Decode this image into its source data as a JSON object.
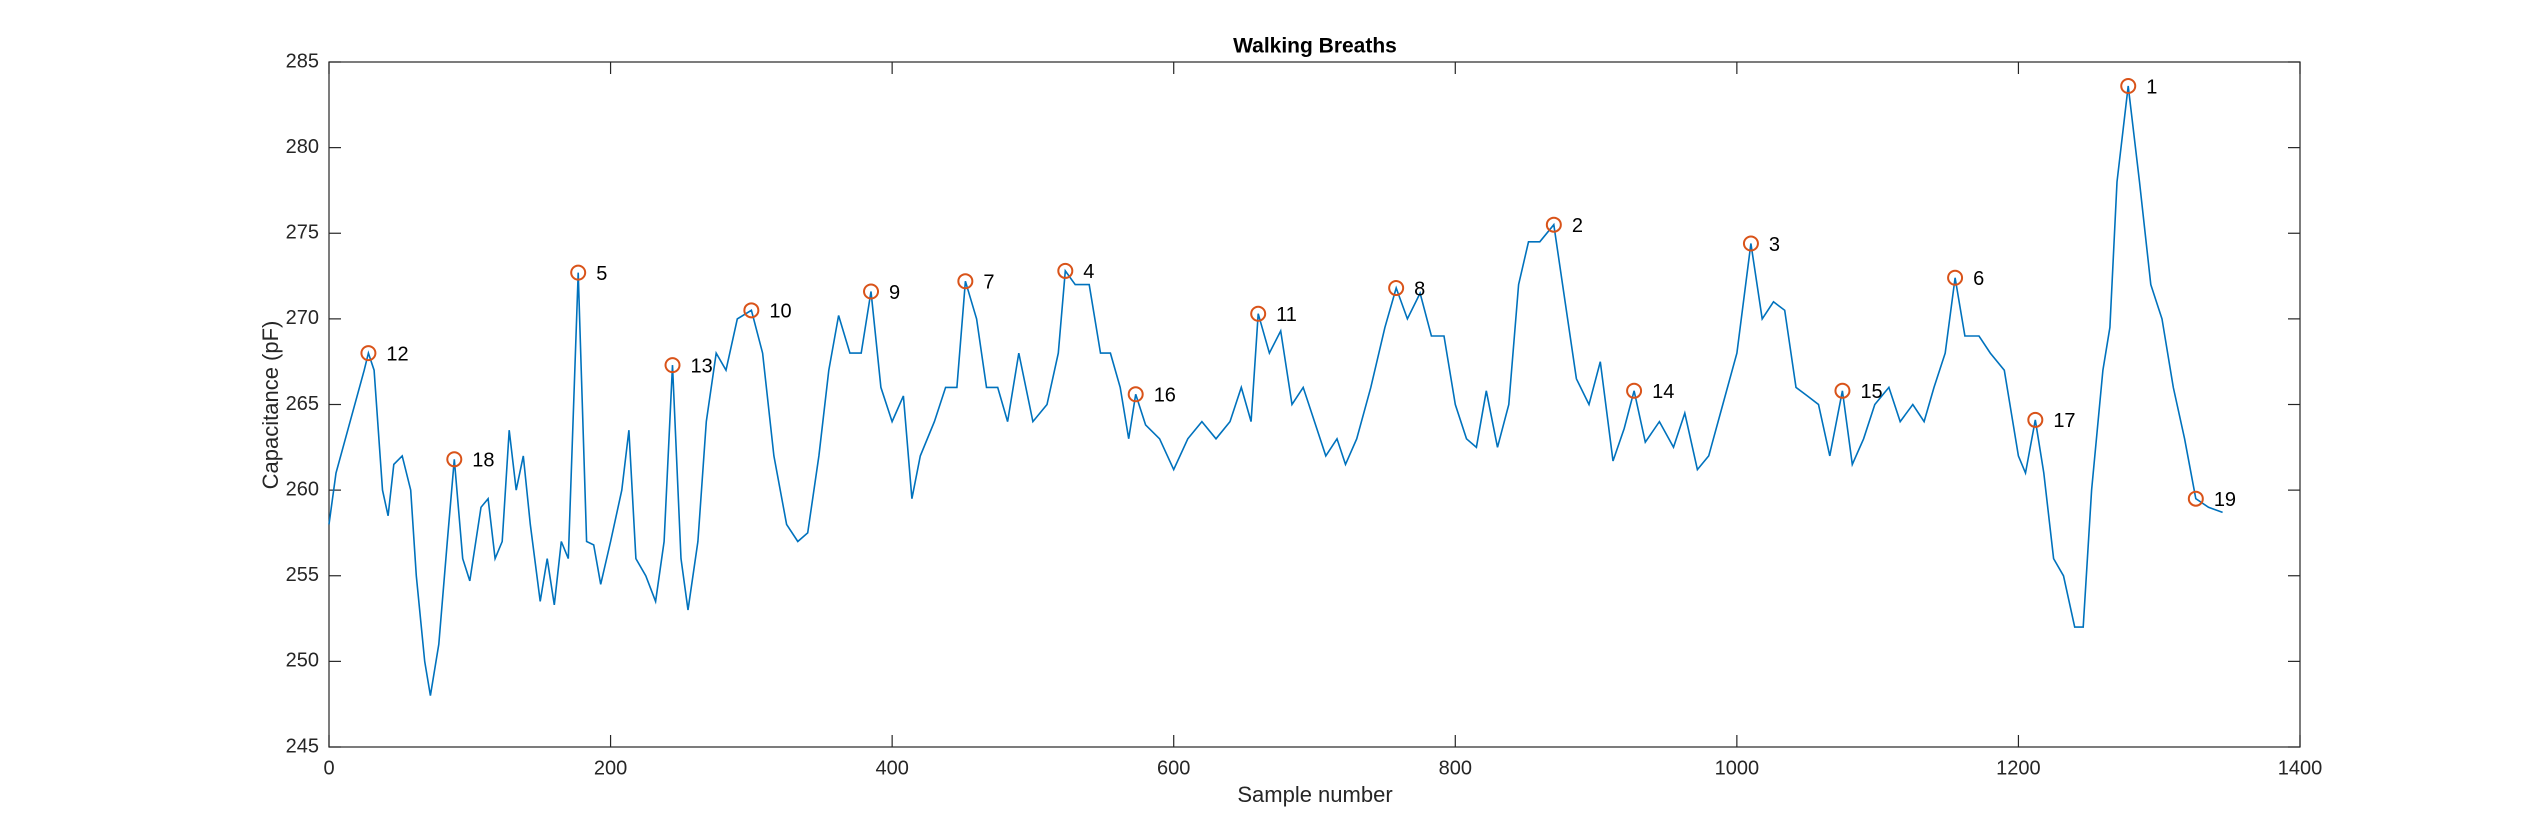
{
  "chart_data": {
    "type": "line",
    "title": "Walking Breaths",
    "x_label": "Sample number",
    "y_label": "Capacitance (pF)",
    "xlim": [
      0,
      1400
    ],
    "ylim": [
      245,
      285
    ],
    "xticks": [
      0,
      200,
      400,
      600,
      800,
      1000,
      1200,
      1400
    ],
    "yticks": [
      245,
      250,
      255,
      260,
      265,
      270,
      275,
      280,
      285
    ],
    "x": [
      0,
      5,
      15,
      25,
      28,
      32,
      38,
      42,
      46,
      52,
      58,
      62,
      68,
      72,
      78,
      84,
      89,
      95,
      100,
      108,
      113,
      118,
      123,
      128,
      133,
      138,
      143,
      150,
      155,
      160,
      165,
      170,
      177,
      183,
      188,
      193,
      200,
      208,
      213,
      218,
      225,
      232,
      238,
      244,
      250,
      255,
      262,
      268,
      275,
      282,
      290,
      300,
      308,
      316,
      325,
      333,
      340,
      348,
      355,
      362,
      370,
      378,
      385,
      392,
      400,
      408,
      414,
      420,
      430,
      438,
      446,
      452,
      460,
      467,
      475,
      482,
      490,
      500,
      510,
      518,
      523,
      530,
      540,
      548,
      555,
      562,
      568,
      573,
      580,
      590,
      600,
      610,
      620,
      630,
      640,
      648,
      655,
      660,
      668,
      676,
      684,
      692,
      700,
      708,
      716,
      722,
      730,
      740,
      750,
      758,
      766,
      775,
      783,
      792,
      800,
      808,
      815,
      822,
      830,
      838,
      845,
      852,
      860,
      870,
      878,
      886,
      895,
      903,
      912,
      920,
      927,
      935,
      945,
      955,
      963,
      972,
      980,
      990,
      1000,
      1010,
      1018,
      1026,
      1034,
      1042,
      1050,
      1058,
      1066,
      1075,
      1082,
      1090,
      1098,
      1108,
      1116,
      1125,
      1133,
      1140,
      1148,
      1155,
      1162,
      1172,
      1180,
      1190,
      1200,
      1205,
      1212,
      1218,
      1225,
      1232,
      1240,
      1246,
      1252,
      1260,
      1265,
      1270,
      1278,
      1286,
      1294,
      1302,
      1310,
      1318,
      1326,
      1335,
      1345
    ],
    "series": [
      {
        "color": "#0072bd",
        "values": [
          258,
          261,
          264,
          267,
          268,
          267,
          260,
          258.5,
          261.5,
          262,
          260,
          255,
          250,
          248,
          251,
          257,
          261.8,
          256,
          254.7,
          259,
          259.5,
          256,
          257,
          263.5,
          260,
          262,
          258,
          253.5,
          256,
          253.3,
          257,
          256,
          272.7,
          257,
          256.8,
          254.5,
          257,
          260,
          263.5,
          256,
          255,
          253.5,
          257,
          267.3,
          256,
          253,
          257,
          264,
          268,
          267,
          270,
          270.5,
          268,
          262,
          258,
          257,
          257.5,
          262,
          267,
          270.2,
          268,
          268,
          271.6,
          266,
          264,
          265.5,
          259.5,
          262,
          264,
          266,
          266,
          272.2,
          270,
          266,
          266,
          264,
          268,
          264,
          265,
          268,
          272.8,
          272,
          272,
          268,
          268,
          266,
          263,
          265.6,
          263.8,
          263,
          261.2,
          263,
          264,
          263,
          264,
          266,
          264,
          270.3,
          268,
          269.3,
          265,
          266,
          264,
          262,
          263,
          261.5,
          263,
          266,
          269.5,
          271.8,
          270,
          271.5,
          269,
          269,
          265,
          263,
          262.5,
          265.8,
          262.5,
          265,
          272,
          274.5,
          274.5,
          275.5,
          271,
          266.5,
          265,
          267.5,
          261.7,
          263.6,
          265.8,
          262.8,
          264,
          262.5,
          264.5,
          261.2,
          262,
          265,
          268,
          274.4,
          270,
          271,
          270.5,
          266,
          265.5,
          265,
          262,
          265.8,
          261.5,
          263,
          265,
          266,
          264,
          265,
          264,
          266,
          268,
          272.4,
          269,
          269,
          268,
          267,
          262,
          261,
          264.1,
          261,
          256,
          255,
          252,
          252,
          260,
          267,
          269.5,
          278,
          283.6,
          278,
          272,
          270,
          266,
          263,
          259.5,
          259,
          258.7
        ]
      }
    ],
    "peaks": {
      "color": "#d95319",
      "labels": [
        "1",
        "2",
        "3",
        "4",
        "5",
        "6",
        "7",
        "8",
        "9",
        "10",
        "11",
        "12",
        "13",
        "14",
        "15",
        "16",
        "17",
        "18",
        "19"
      ],
      "x": [
        1278,
        870,
        1010,
        523,
        177,
        1155,
        452,
        758,
        385,
        300,
        660,
        28,
        244,
        927,
        1075,
        573,
        1212,
        89,
        1326
      ],
      "values": [
        283.6,
        275.5,
        274.4,
        272.8,
        272.7,
        272.4,
        272.2,
        271.8,
        271.6,
        270.5,
        270.3,
        268,
        267.3,
        265.8,
        265.8,
        265.6,
        264.1,
        261.8,
        259.5
      ]
    }
  }
}
